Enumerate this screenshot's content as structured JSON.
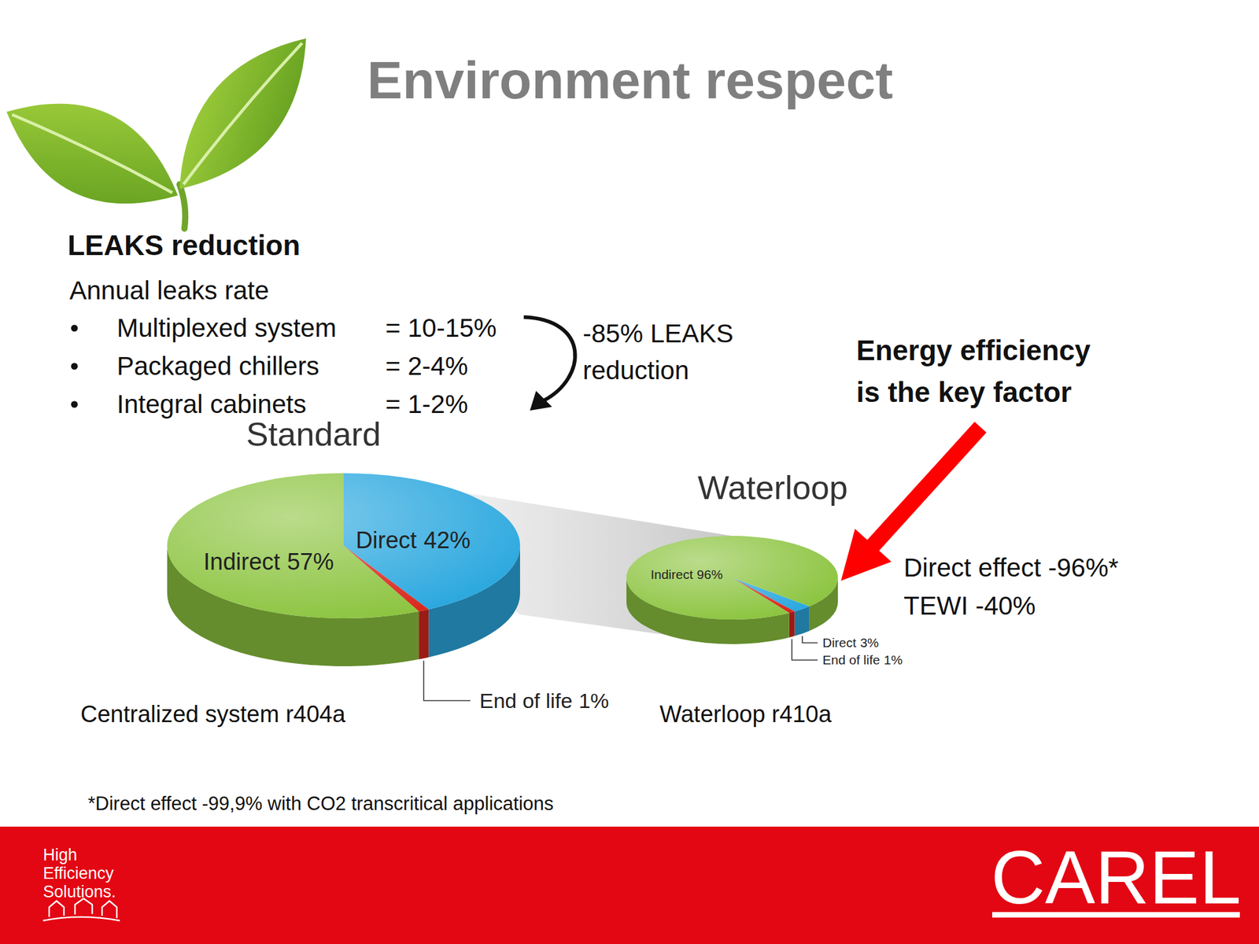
{
  "slide": {
    "title": "Environment respect",
    "leaks": {
      "heading": "LEAKS reduction",
      "subheading": "Annual leaks rate",
      "items": [
        {
          "label": "Multiplexed system",
          "value": "= 10-15%"
        },
        {
          "label": "Packaged chillers",
          "value": "= 2-4%"
        },
        {
          "label": "Integral cabinets",
          "value": "= 1-2%"
        }
      ],
      "reduction": [
        "-85% LEAKS",
        "reduction"
      ]
    },
    "callout": {
      "heading": [
        "Energy efficiency",
        "is the key factor"
      ],
      "lines": [
        "Direct effect -96%*",
        "TEWI -40%"
      ]
    },
    "footnote": "*Direct effect -99,9% with CO2 transcritical applications",
    "footer": {
      "tagline": [
        "High",
        "Efficiency",
        "Solutions."
      ],
      "logo": "CAREL"
    }
  },
  "chart_data": [
    {
      "type": "pie",
      "title": "Standard",
      "subtitle": "Centralized system r404a",
      "categories": [
        "Direct",
        "End of life",
        "Indirect"
      ],
      "values": [
        42,
        1,
        57
      ],
      "value_labels": [
        "42%",
        "1%",
        "57%"
      ],
      "colors": [
        "#2ba8df",
        "#d9261c",
        "#8cc43f"
      ],
      "data_labels": true
    },
    {
      "type": "pie",
      "title": "Waterloop",
      "subtitle": "Waterloop r410a",
      "categories": [
        "Direct",
        "End of life",
        "Indirect"
      ],
      "values": [
        3,
        1,
        96
      ],
      "value_labels": [
        "3%",
        "1%",
        "96%"
      ],
      "colors": [
        "#2ba8df",
        "#d9261c",
        "#8cc43f"
      ],
      "data_labels": true
    }
  ]
}
